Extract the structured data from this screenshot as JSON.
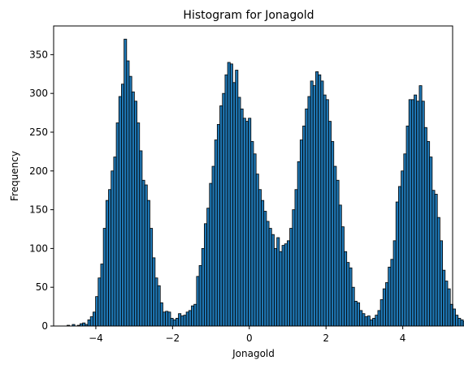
{
  "chart_data": {
    "type": "bar",
    "title": "Histogram for Jonagold",
    "xlabel": "Jonagold",
    "ylabel": "Frequency",
    "xlim": [
      -5.1,
      5.3
    ],
    "ylim": [
      0,
      387
    ],
    "xticks": [
      -4,
      -2,
      0,
      2,
      4
    ],
    "xtick_labels": [
      "−4",
      "−2",
      "0",
      "2",
      "4"
    ],
    "yticks": [
      0,
      50,
      100,
      150,
      200,
      250,
      300,
      350
    ],
    "yticks_labels": [
      "0",
      "50",
      "100",
      "150",
      "200",
      "250",
      "300",
      "350"
    ],
    "grid": false,
    "bar_color": "#1f77b4",
    "edge_color": "#000000",
    "bin_start": -4.75,
    "bin_width": 0.0675,
    "values": [
      1,
      0,
      2,
      0,
      1,
      3,
      4,
      2,
      8,
      12,
      18,
      38,
      62,
      80,
      126,
      162,
      176,
      200,
      218,
      262,
      296,
      312,
      370,
      342,
      322,
      302,
      290,
      262,
      226,
      188,
      182,
      162,
      126,
      88,
      62,
      52,
      30,
      18,
      19,
      18,
      10,
      8,
      10,
      16,
      13,
      14,
      18,
      20,
      26,
      28,
      64,
      78,
      100,
      132,
      152,
      184,
      206,
      240,
      260,
      284,
      300,
      324,
      340,
      338,
      314,
      330,
      295,
      280,
      268,
      264,
      268,
      238,
      222,
      196,
      176,
      162,
      148,
      135,
      126,
      118,
      100,
      114,
      96,
      104,
      106,
      110,
      126,
      150,
      176,
      212,
      240,
      258,
      280,
      296,
      316,
      310,
      328,
      324,
      316,
      298,
      292,
      264,
      238,
      206,
      188,
      156,
      128,
      96,
      82,
      75,
      50,
      32,
      30,
      20,
      16,
      12,
      13,
      8,
      10,
      14,
      20,
      34,
      48,
      56,
      76,
      86,
      110,
      160,
      180,
      200,
      222,
      258,
      292,
      292,
      298,
      290,
      310,
      290,
      256,
      238,
      218,
      175,
      170,
      140,
      110,
      72,
      58,
      48,
      28,
      22,
      14,
      10,
      8,
      6,
      4,
      2,
      1,
      1,
      0
    ]
  }
}
